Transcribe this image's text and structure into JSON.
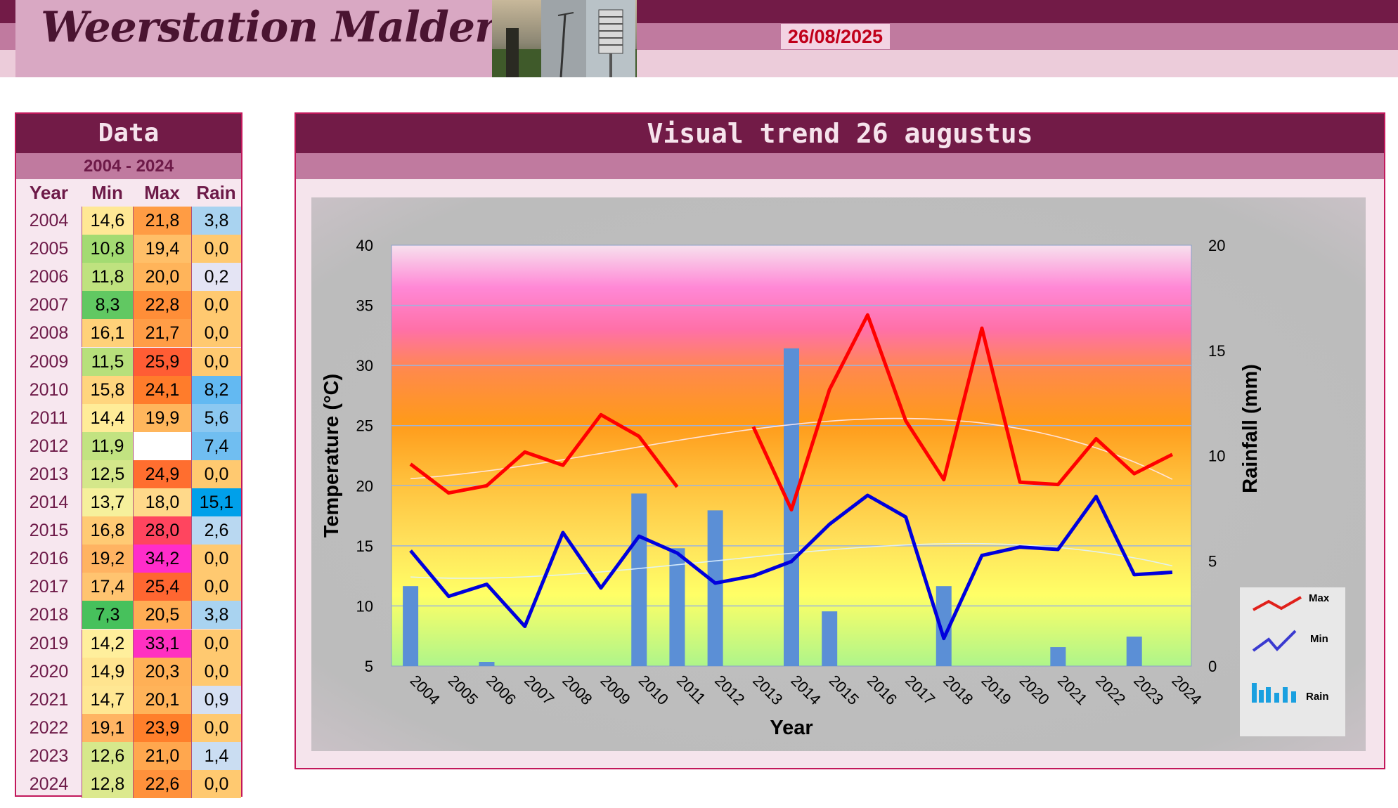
{
  "header": {
    "site_title": "Weerstation Malderen",
    "date": "26/08/2025"
  },
  "table": {
    "title": "Data",
    "range": "2004 - 2024",
    "columns": [
      "Year",
      "Min",
      "Max",
      "Rain"
    ],
    "rows": [
      {
        "year": "2004",
        "min": "14,6",
        "max": "21,8",
        "rain": "3,8"
      },
      {
        "year": "2005",
        "min": "10,8",
        "max": "19,4",
        "rain": "0,0"
      },
      {
        "year": "2006",
        "min": "11,8",
        "max": "20,0",
        "rain": "0,2"
      },
      {
        "year": "2007",
        "min": "8,3",
        "max": "22,8",
        "rain": "0,0"
      },
      {
        "year": "2008",
        "min": "16,1",
        "max": "21,7",
        "rain": "0,0"
      },
      {
        "year": "2009",
        "min": "11,5",
        "max": "25,9",
        "rain": "0,0"
      },
      {
        "year": "2010",
        "min": "15,8",
        "max": "24,1",
        "rain": "8,2"
      },
      {
        "year": "2011",
        "min": "14,4",
        "max": "19,9",
        "rain": "5,6"
      },
      {
        "year": "2012",
        "min": "11,9",
        "max": "",
        "rain": "7,4"
      },
      {
        "year": "2013",
        "min": "12,5",
        "max": "24,9",
        "rain": "0,0"
      },
      {
        "year": "2014",
        "min": "13,7",
        "max": "18,0",
        "rain": "15,1"
      },
      {
        "year": "2015",
        "min": "16,8",
        "max": "28,0",
        "rain": "2,6"
      },
      {
        "year": "2016",
        "min": "19,2",
        "max": "34,2",
        "rain": "0,0"
      },
      {
        "year": "2017",
        "min": "17,4",
        "max": "25,4",
        "rain": "0,0"
      },
      {
        "year": "2018",
        "min": "7,3",
        "max": "20,5",
        "rain": "3,8"
      },
      {
        "year": "2019",
        "min": "14,2",
        "max": "33,1",
        "rain": "0,0"
      },
      {
        "year": "2020",
        "min": "14,9",
        "max": "20,3",
        "rain": "0,0"
      },
      {
        "year": "2021",
        "min": "14,7",
        "max": "20,1",
        "rain": "0,9"
      },
      {
        "year": "2022",
        "min": "19,1",
        "max": "23,9",
        "rain": "0,0"
      },
      {
        "year": "2023",
        "min": "12,6",
        "max": "21,0",
        "rain": "1,4"
      },
      {
        "year": "2024",
        "min": "12,8",
        "max": "22,6",
        "rain": "0,0"
      }
    ]
  },
  "colors": {
    "brand_dark": "#721b47",
    "brand_mid": "#c07a9f",
    "max_line": "#ff0000",
    "min_line": "#0000dd",
    "rain_bar": "#5b8fd6"
  },
  "chart_data": {
    "type": "line",
    "title": "Visual trend 26 augustus",
    "xlabel": "Year",
    "ylabel": "Temperature (°C)",
    "y2label": "Rainfall (mm)",
    "ylim": [
      5,
      40
    ],
    "y2lim": [
      0,
      20
    ],
    "yticks": [
      "5",
      "10",
      "15",
      "20",
      "25",
      "30",
      "35",
      "40"
    ],
    "y2ticks": [
      "0",
      "5",
      "10",
      "15",
      "20"
    ],
    "categories": [
      "2004",
      "2005",
      "2006",
      "2007",
      "2008",
      "2009",
      "2010",
      "2011",
      "2012",
      "2013",
      "2014",
      "2015",
      "2016",
      "2017",
      "2018",
      "2019",
      "2020",
      "2021",
      "2022",
      "2023",
      "2024"
    ],
    "series": [
      {
        "name": "Max",
        "type": "line",
        "axis": "left",
        "values": [
          21.8,
          19.4,
          20.0,
          22.8,
          21.7,
          25.9,
          24.1,
          19.9,
          null,
          24.9,
          18.0,
          28.0,
          34.2,
          25.4,
          20.5,
          33.1,
          20.3,
          20.1,
          23.9,
          21.0,
          22.6
        ]
      },
      {
        "name": "Min",
        "type": "line",
        "axis": "left",
        "values": [
          14.6,
          10.8,
          11.8,
          8.3,
          16.1,
          11.5,
          15.8,
          14.4,
          11.9,
          12.5,
          13.7,
          16.8,
          19.2,
          17.4,
          7.3,
          14.2,
          14.9,
          14.7,
          19.1,
          12.6,
          12.8
        ]
      },
      {
        "name": "Rain",
        "type": "bar",
        "axis": "right",
        "values": [
          3.8,
          0.0,
          0.2,
          0.0,
          0.0,
          0.0,
          8.2,
          5.6,
          7.4,
          0.0,
          15.1,
          2.6,
          0.0,
          0.0,
          3.8,
          0.0,
          0.0,
          0.9,
          0.0,
          1.4,
          0.0
        ]
      }
    ],
    "legend": {
      "placement": "bottom-right",
      "entries": [
        "Max",
        "Min",
        "Rain"
      ]
    },
    "grid": true
  }
}
